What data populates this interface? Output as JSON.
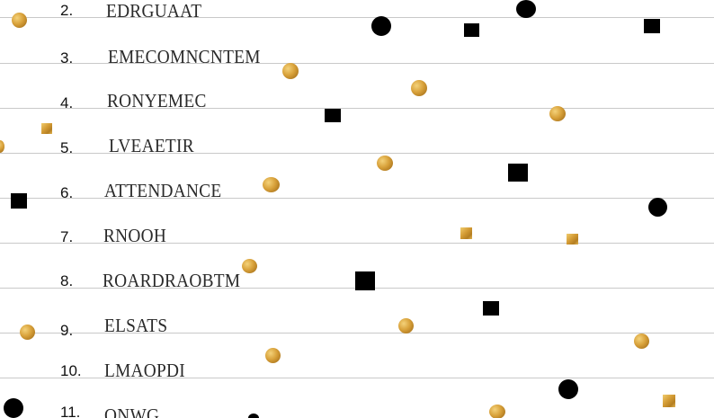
{
  "worksheet": {
    "items": [
      {
        "number": "2.",
        "word": "EDRGUAAT"
      },
      {
        "number": "3.",
        "word": "EMECOMNCNTEM"
      },
      {
        "number": "4.",
        "word": "RONYEMEC"
      },
      {
        "number": "5.",
        "word": "LVEAETIR"
      },
      {
        "number": "6.",
        "word": "ATTENDANCE"
      },
      {
        "number": "7.",
        "word": "RNOOH"
      },
      {
        "number": "8.",
        "word": "ROARDRAOBTM"
      },
      {
        "number": "9.",
        "word": "ELSATS"
      },
      {
        "number": "10.",
        "word": "LMAOPDI"
      },
      {
        "number": "11.",
        "word": "ONWG"
      }
    ]
  },
  "colors": {
    "gold_confetti": "#d8a13a",
    "black_confetti": "#000000",
    "rule_line": "#c9c9c9",
    "text": "#2a2a2a"
  }
}
